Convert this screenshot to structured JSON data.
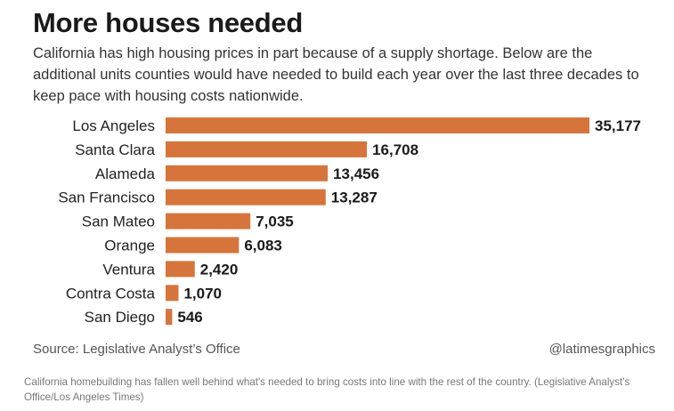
{
  "graphic": {
    "title": "More houses needed",
    "subtitle": "California has high housing prices in part because of a supply shortage. Below are the additional units counties would have needed to build each year over the last three decades to keep pace with housing costs nationwide.",
    "source": "Source: Legislative Analyst’s Office",
    "credit": "@latimesgraphics"
  },
  "caption": "California homebuilding has fallen well behind what's needed to bring costs into line with the rest of the country. (Legislative Analyst's Office/Los Angeles Times)",
  "chart_data": {
    "type": "bar",
    "orientation": "horizontal",
    "title": "More houses needed",
    "categories": [
      "Los Angeles",
      "Santa Clara",
      "Alameda",
      "San Francisco",
      "San Mateo",
      "Orange",
      "Ventura",
      "Contra Costa",
      "San Diego"
    ],
    "values": [
      35177,
      16708,
      13456,
      13287,
      7035,
      6083,
      2420,
      1070,
      546
    ],
    "data_labels": [
      "35,177",
      "16,708",
      "13,456",
      "13,287",
      "7,035",
      "6,083",
      "2,420",
      "1,070",
      "546"
    ],
    "bar_color": "#d5753b",
    "xlim": [
      0,
      35177
    ],
    "grid": false,
    "legend": "none"
  }
}
